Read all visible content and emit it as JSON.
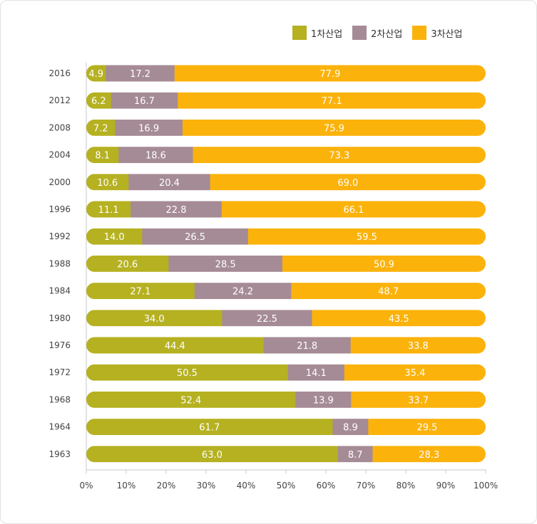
{
  "chart_data": {
    "type": "bar",
    "orientation": "horizontal",
    "stacked": true,
    "categories": [
      "2016",
      "2012",
      "2008",
      "2004",
      "2000",
      "1996",
      "1992",
      "1988",
      "1984",
      "1980",
      "1976",
      "1972",
      "1968",
      "1964",
      "1963"
    ],
    "series": [
      {
        "name": "1차산업",
        "color": "#b5b121",
        "values": [
          4.9,
          6.2,
          7.2,
          8.1,
          10.6,
          11.1,
          14.0,
          20.6,
          27.1,
          34.0,
          44.4,
          50.5,
          52.4,
          61.7,
          63.0
        ]
      },
      {
        "name": "2차산업",
        "color": "#a58b96",
        "values": [
          17.2,
          16.7,
          16.9,
          18.6,
          20.4,
          22.8,
          26.5,
          28.5,
          24.2,
          22.5,
          21.8,
          14.1,
          13.9,
          8.9,
          8.7
        ]
      },
      {
        "name": "3차산업",
        "color": "#fbb20b",
        "values": [
          77.9,
          77.1,
          75.9,
          73.3,
          69.0,
          66.1,
          59.5,
          50.9,
          48.7,
          43.5,
          33.8,
          35.4,
          33.7,
          29.5,
          28.3
        ]
      }
    ],
    "xticks": [
      "0%",
      "10%",
      "20%",
      "30%",
      "40%",
      "50%",
      "60%",
      "70%",
      "80%",
      "90%",
      "100%"
    ],
    "xlim": [
      0,
      100
    ],
    "legend_position": "top-right",
    "grid": false
  }
}
